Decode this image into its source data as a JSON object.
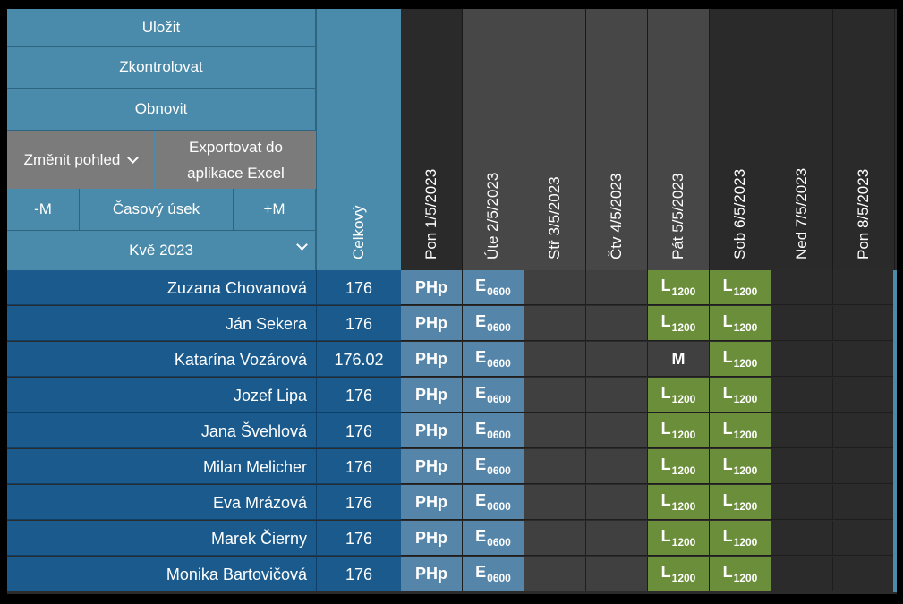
{
  "controls": {
    "save": "Uložit",
    "check": "Zkontrolovat",
    "refresh": "Obnovit",
    "change_view": "Změnit pohled",
    "export_line1": "Exportovat do",
    "export_line2": "aplikace Excel",
    "minus_month": "-M",
    "time_range": "Časový úsek",
    "plus_month": "+M",
    "month_select": "Kvě 2023"
  },
  "total_header": "Celkový",
  "days": [
    {
      "label": "Pon 1/5/2023",
      "head_color": "#2a2a2a",
      "cell_color": "#5585a8"
    },
    {
      "label": "Úte 2/5/2023",
      "head_color": "#474747",
      "cell_color": "#5585a8"
    },
    {
      "label": "Stř 3/5/2023",
      "head_color": "#474747",
      "cell_color": "#404040"
    },
    {
      "label": "Čtv 4/5/2023",
      "head_color": "#474747",
      "cell_color": "#404040"
    },
    {
      "label": "Pát 5/5/2023",
      "head_color": "#474747",
      "cell_color": "#6b8e3a"
    },
    {
      "label": "Sob 6/5/2023",
      "head_color": "#2a2a2a",
      "cell_color": "#6b8e3a"
    },
    {
      "label": "Ned 7/5/2023",
      "head_color": "#2a2a2a",
      "cell_color": "#2b2b2b"
    },
    {
      "label": "Pon 8/5/2023",
      "head_color": "#2a2a2a",
      "cell_color": "#2b2b2b"
    }
  ],
  "rows": [
    {
      "name": "Zuzana Chovanová",
      "total": "176",
      "shifts": [
        [
          "PHp",
          ""
        ],
        [
          "E",
          "0600"
        ],
        [
          "",
          ""
        ],
        [
          "",
          ""
        ],
        [
          "L",
          "1200"
        ],
        [
          "L",
          "1200"
        ],
        [
          "",
          ""
        ],
        [
          "",
          ""
        ]
      ]
    },
    {
      "name": "Ján Sekera",
      "total": "176",
      "shifts": [
        [
          "PHp",
          ""
        ],
        [
          "E",
          "0600"
        ],
        [
          "",
          ""
        ],
        [
          "",
          ""
        ],
        [
          "L",
          "1200"
        ],
        [
          "L",
          "1200"
        ],
        [
          "",
          ""
        ],
        [
          "",
          ""
        ]
      ]
    },
    {
      "name": "Katarína Vozárová",
      "total": "176.02",
      "shifts": [
        [
          "PHp",
          ""
        ],
        [
          "E",
          "0600"
        ],
        [
          "",
          ""
        ],
        [
          "",
          ""
        ],
        [
          "M",
          ""
        ],
        [
          "L",
          "1200"
        ],
        [
          "",
          ""
        ],
        [
          "",
          ""
        ]
      ]
    },
    {
      "name": "Jozef Lipa",
      "total": "176",
      "shifts": [
        [
          "PHp",
          ""
        ],
        [
          "E",
          "0600"
        ],
        [
          "",
          ""
        ],
        [
          "",
          ""
        ],
        [
          "L",
          "1200"
        ],
        [
          "L",
          "1200"
        ],
        [
          "",
          ""
        ],
        [
          "",
          ""
        ]
      ]
    },
    {
      "name": "Jana Švehlová",
      "total": "176",
      "shifts": [
        [
          "PHp",
          ""
        ],
        [
          "E",
          "0600"
        ],
        [
          "",
          ""
        ],
        [
          "",
          ""
        ],
        [
          "L",
          "1200"
        ],
        [
          "L",
          "1200"
        ],
        [
          "",
          ""
        ],
        [
          "",
          ""
        ]
      ]
    },
    {
      "name": "Milan Melicher",
      "total": "176",
      "shifts": [
        [
          "PHp",
          ""
        ],
        [
          "E",
          "0600"
        ],
        [
          "",
          ""
        ],
        [
          "",
          ""
        ],
        [
          "L",
          "1200"
        ],
        [
          "L",
          "1200"
        ],
        [
          "",
          ""
        ],
        [
          "",
          ""
        ]
      ]
    },
    {
      "name": "Eva Mrázová",
      "total": "176",
      "shifts": [
        [
          "PHp",
          ""
        ],
        [
          "E",
          "0600"
        ],
        [
          "",
          ""
        ],
        [
          "",
          ""
        ],
        [
          "L",
          "1200"
        ],
        [
          "L",
          "1200"
        ],
        [
          "",
          ""
        ],
        [
          "",
          ""
        ]
      ]
    },
    {
      "name": "Marek Čierny",
      "total": "176",
      "shifts": [
        [
          "PHp",
          ""
        ],
        [
          "E",
          "0600"
        ],
        [
          "",
          ""
        ],
        [
          "",
          ""
        ],
        [
          "L",
          "1200"
        ],
        [
          "L",
          "1200"
        ],
        [
          "",
          ""
        ],
        [
          "",
          ""
        ]
      ]
    },
    {
      "name": "Monika Bartovičová",
      "total": "176",
      "shifts": [
        [
          "PHp",
          ""
        ],
        [
          "E",
          "0600"
        ],
        [
          "",
          ""
        ],
        [
          "",
          ""
        ],
        [
          "L",
          "1200"
        ],
        [
          "L",
          "1200"
        ],
        [
          "",
          ""
        ],
        [
          "",
          ""
        ]
      ]
    }
  ]
}
